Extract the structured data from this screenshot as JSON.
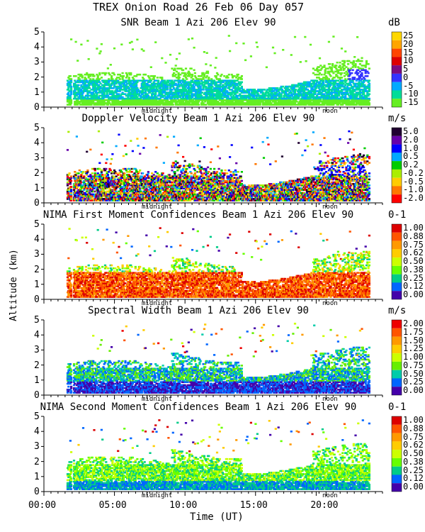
{
  "title": "TREX Onion Road  26 Feb 06 Day 057",
  "xlabel": "Time (UT)",
  "ylabel": "Altitude (km)",
  "time_ticks": [
    "00:00",
    "05:00",
    "10:00",
    "15:00",
    "20:00"
  ],
  "marker_labels": [
    "midnight",
    "noon"
  ],
  "chart_data": [
    {
      "type": "heatmap",
      "title": "SNR Beam 1 Azi 206 Elev 90",
      "units": "dB",
      "ylim": [
        0,
        5
      ],
      "xlim": [
        "00:00",
        "24:00"
      ],
      "colorbar": [
        "25",
        "20",
        "15",
        "10",
        "5",
        "0",
        "-5",
        "-10",
        "-15"
      ],
      "colors": [
        "#ffd700",
        "#ffa500",
        "#ff4500",
        "#dd0000",
        "#7b0c7f",
        "#3333ff",
        "#00aaff",
        "#00dd99",
        "#66ee22"
      ]
    },
    {
      "type": "heatmap",
      "title": "Doppler Velocity Beam 1 Azi 206 Elev 90",
      "units": "m/s",
      "ylim": [
        0,
        5
      ],
      "colorbar": [
        "5.0",
        "2.0",
        "1.0",
        "0.5",
        "0.2",
        "-0.2",
        "-0.5",
        "-1.0",
        "-2.0"
      ],
      "colors": [
        "#200030",
        "#6600aa",
        "#0000ff",
        "#00aaff",
        "#00cc00",
        "#aaee00",
        "#ffcc00",
        "#ff7700",
        "#ff0000"
      ]
    },
    {
      "type": "heatmap",
      "title": "NIMA First Moment Confidences Beam 1 Azi 206 Elev 90",
      "units": "0-1",
      "ylim": [
        0,
        5
      ],
      "colorbar": [
        "1.00",
        "0.88",
        "0.75",
        "0.62",
        "0.50",
        "0.38",
        "0.25",
        "0.12",
        "0.00"
      ],
      "colors": [
        "#dd0000",
        "#ff5500",
        "#ff9900",
        "#ffcc00",
        "#ccff00",
        "#66ff00",
        "#00cc88",
        "#0066ff",
        "#4400aa"
      ]
    },
    {
      "type": "heatmap",
      "title": "Spectral Width Beam 1 Azi 206 Elev 90",
      "units": "m/s",
      "ylim": [
        0,
        5
      ],
      "colorbar": [
        "2.00",
        "1.75",
        "1.50",
        "1.25",
        "1.00",
        "0.75",
        "0.50",
        "0.25",
        "0.00"
      ],
      "colors": [
        "#ee0000",
        "#ff5500",
        "#ff9900",
        "#ffcc00",
        "#ccff00",
        "#66ee00",
        "#00ccaa",
        "#0066ff",
        "#4400aa"
      ]
    },
    {
      "type": "heatmap",
      "title": "NIMA Second Moment Confidences Beam 1 Azi 206 Elev 90",
      "units": "0-1",
      "ylim": [
        0,
        5
      ],
      "colorbar": [
        "1.00",
        "0.88",
        "0.75",
        "0.62",
        "0.50",
        "0.38",
        "0.25",
        "0.12",
        "0.00"
      ],
      "colors": [
        "#dd0000",
        "#ff5500",
        "#ff9900",
        "#ffcc00",
        "#ccff00",
        "#66ff00",
        "#00cc88",
        "#0066ff",
        "#4400aa"
      ]
    }
  ]
}
